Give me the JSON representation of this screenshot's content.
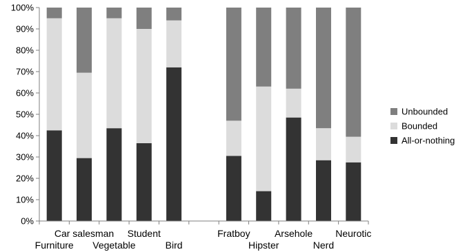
{
  "chart_data": {
    "type": "bar",
    "stacked": true,
    "percent_scale": true,
    "categories": [
      "Furniture",
      "Car salesman",
      "Vegetable",
      "Student",
      "Bird",
      "",
      "Fratboy",
      "Hipster",
      "Arsehole",
      "Nerd",
      "Neurotic"
    ],
    "series": [
      {
        "name": "All-or-nothing",
        "color": "#333333",
        "values": [
          42.5,
          29.5,
          43.5,
          36.5,
          72.0,
          null,
          30.5,
          14.0,
          48.5,
          28.5,
          27.5
        ]
      },
      {
        "name": "Bounded",
        "color": "#dcdcdc",
        "values": [
          52.5,
          40.0,
          51.5,
          53.5,
          22.0,
          null,
          16.5,
          49.0,
          13.5,
          15.0,
          12.0
        ]
      },
      {
        "name": "Unbounded",
        "color": "#7f7f7f",
        "values": [
          5.0,
          30.5,
          5.0,
          10.0,
          6.0,
          null,
          53.0,
          37.0,
          38.0,
          56.5,
          60.5
        ]
      }
    ],
    "ylim": [
      0,
      100
    ],
    "yticks": [
      "0%",
      "10%",
      "20%",
      "30%",
      "40%",
      "50%",
      "60%",
      "70%",
      "80%",
      "90%",
      "100%"
    ],
    "xlabel": "",
    "ylabel": "",
    "grid": false,
    "legend": {
      "placement": "right",
      "items": [
        "Unbounded",
        "Bounded",
        "All-or-nothing"
      ]
    }
  }
}
